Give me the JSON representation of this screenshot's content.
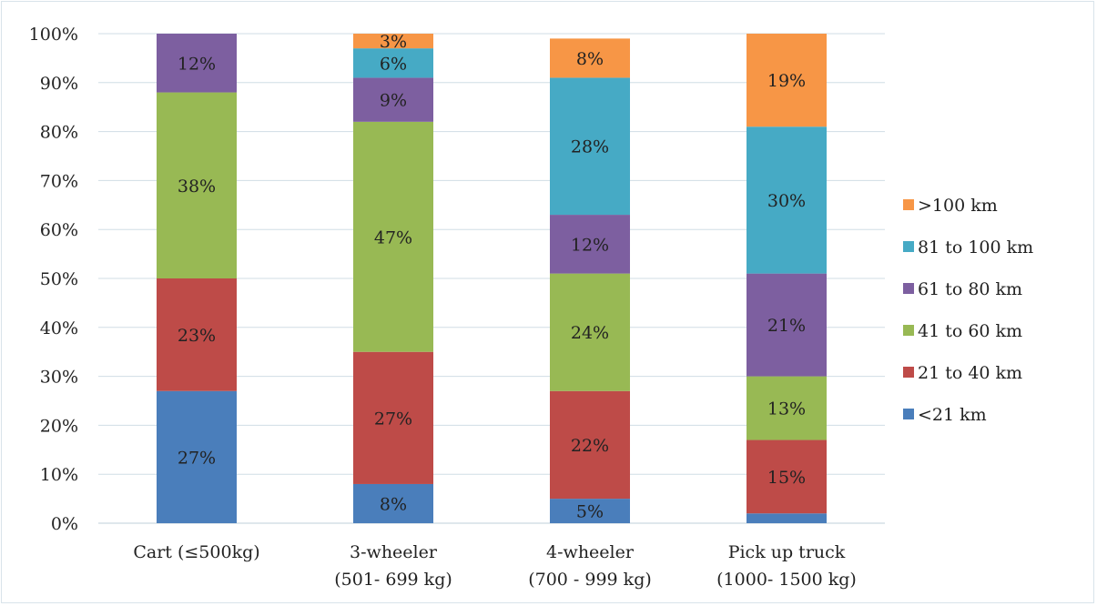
{
  "chart_data": {
    "type": "bar",
    "stacked": true,
    "percent_stacked": true,
    "categories": [
      [
        "Cart (≤500kg)"
      ],
      [
        "3-wheeler",
        "(501- 699 kg)"
      ],
      [
        "4-wheeler",
        "(700 - 999 kg)"
      ],
      [
        "Pick up truck",
        "(1000- 1500 kg)"
      ]
    ],
    "series": [
      {
        "name": "<21 km",
        "color": "#4a7ebb",
        "values": [
          27,
          8,
          5,
          2
        ],
        "labels": [
          "27%",
          "8%",
          "5%",
          ""
        ]
      },
      {
        "name": "21 to 40 km",
        "color": "#be4b48",
        "values": [
          23,
          27,
          22,
          15
        ],
        "labels": [
          "23%",
          "27%",
          "22%",
          "15%"
        ]
      },
      {
        "name": "41 to 60 km",
        "color": "#98b954",
        "values": [
          38,
          47,
          24,
          13
        ],
        "labels": [
          "38%",
          "47%",
          "24%",
          "13%"
        ]
      },
      {
        "name": "61 to 80 km",
        "color": "#7d5fa0",
        "values": [
          12,
          9,
          12,
          21
        ],
        "labels": [
          "12%",
          "9%",
          "12%",
          "21%"
        ]
      },
      {
        "name": "81 to 100 km",
        "color": "#46aac5",
        "values": [
          0,
          6,
          28,
          30
        ],
        "labels": [
          "",
          "6%",
          "28%",
          "30%"
        ]
      },
      {
        "name": ">100 km",
        "color": "#f79646",
        "values": [
          0,
          3,
          8,
          19
        ],
        "labels": [
          "",
          "3%",
          "8%",
          "19%"
        ]
      }
    ],
    "yticks": [
      "0%",
      "10%",
      "20%",
      "30%",
      "40%",
      "50%",
      "60%",
      "70%",
      "80%",
      "90%",
      "100%"
    ],
    "ylim": [
      0,
      100
    ],
    "grid": true,
    "legend_position": "right",
    "title": "",
    "xlabel": "",
    "ylabel": ""
  }
}
